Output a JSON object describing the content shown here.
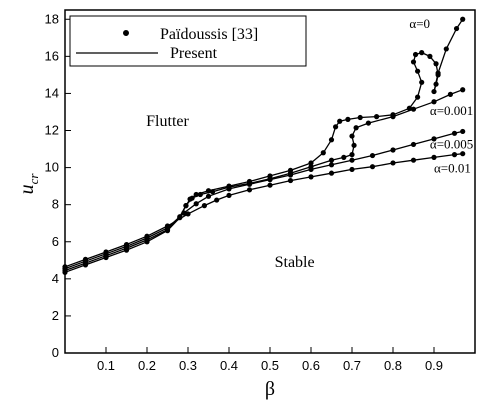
{
  "chart_data": {
    "type": "line",
    "title": "",
    "xlabel": "β",
    "ylabel_main": "u",
    "ylabel_sub": "cr",
    "xlim": [
      0,
      1
    ],
    "ylim": [
      0,
      18.5
    ],
    "xticks": [
      0.1,
      0.2,
      0.3,
      0.4,
      0.5,
      0.6,
      0.7,
      0.8,
      0.9
    ],
    "xtick_labels": [
      "0.1",
      "0.2",
      "0.3",
      "0.4",
      "0.5",
      "0.6",
      "0.7",
      "0.8",
      "0.9"
    ],
    "yticks": [
      0,
      2,
      4,
      6,
      8,
      10,
      12,
      14,
      16,
      18
    ],
    "ytick_labels": [
      "0",
      "2",
      "4",
      "6",
      "8",
      "10",
      "12",
      "14",
      "16",
      "18"
    ],
    "grid": false,
    "legend_position": "top-left",
    "legend": [
      {
        "label": "Païdoussis [33]",
        "style": "markers"
      },
      {
        "label": "Present",
        "style": "line"
      }
    ],
    "regions": [
      {
        "label": "Flutter",
        "x": 0.25,
        "y": 12.5
      },
      {
        "label": "Stable",
        "x": 0.56,
        "y": 4.9
      }
    ],
    "series": [
      {
        "name": "α=0",
        "label_at": [
          0.84,
          17.75
        ],
        "x": [
          0.0,
          0.05,
          0.1,
          0.15,
          0.2,
          0.25,
          0.28,
          0.295,
          0.305,
          0.32,
          0.35,
          0.4,
          0.45,
          0.5,
          0.55,
          0.6,
          0.63,
          0.65,
          0.66,
          0.67,
          0.69,
          0.72,
          0.76,
          0.8,
          0.84,
          0.86,
          0.87,
          0.86,
          0.85,
          0.855,
          0.87,
          0.89,
          0.905,
          0.91,
          0.905,
          0.9,
          0.91,
          0.93,
          0.955,
          0.97
        ],
        "y": [
          4.35,
          4.75,
          5.15,
          5.55,
          6.0,
          6.6,
          7.3,
          7.95,
          8.3,
          8.55,
          8.75,
          9.0,
          9.25,
          9.55,
          9.85,
          10.25,
          10.8,
          11.5,
          12.2,
          12.5,
          12.6,
          12.7,
          12.75,
          12.85,
          13.2,
          13.8,
          14.6,
          15.2,
          15.7,
          16.1,
          16.2,
          16.0,
          15.6,
          15.0,
          14.5,
          14.1,
          15.1,
          16.4,
          17.5,
          18.0
        ]
      },
      {
        "name": "α=0.001",
        "label_at": [
          0.89,
          13.05
        ],
        "x": [
          0.0,
          0.05,
          0.1,
          0.15,
          0.2,
          0.25,
          0.28,
          0.295,
          0.31,
          0.33,
          0.36,
          0.4,
          0.45,
          0.5,
          0.55,
          0.6,
          0.65,
          0.68,
          0.7,
          0.705,
          0.7,
          0.71,
          0.74,
          0.8,
          0.85,
          0.9,
          0.94,
          0.97
        ],
        "y": [
          4.45,
          4.85,
          5.25,
          5.65,
          6.1,
          6.65,
          7.35,
          7.95,
          8.35,
          8.55,
          8.7,
          8.95,
          9.15,
          9.4,
          9.7,
          10.05,
          10.4,
          10.55,
          10.7,
          11.2,
          11.7,
          12.15,
          12.4,
          12.75,
          13.15,
          13.55,
          13.95,
          14.2
        ]
      },
      {
        "name": "α=0.005",
        "label_at": [
          0.89,
          11.25
        ],
        "x": [
          0.0,
          0.05,
          0.1,
          0.15,
          0.2,
          0.25,
          0.29,
          0.32,
          0.35,
          0.4,
          0.45,
          0.5,
          0.55,
          0.6,
          0.65,
          0.7,
          0.75,
          0.8,
          0.85,
          0.9,
          0.95,
          0.97
        ],
        "y": [
          4.55,
          4.95,
          5.35,
          5.75,
          6.2,
          6.75,
          7.55,
          8.05,
          8.45,
          8.85,
          9.1,
          9.35,
          9.6,
          9.9,
          10.15,
          10.4,
          10.65,
          10.95,
          11.25,
          11.55,
          11.85,
          11.95
        ]
      },
      {
        "name": "α=0.01",
        "label_at": [
          0.9,
          9.95
        ],
        "x": [
          0.0,
          0.05,
          0.1,
          0.15,
          0.2,
          0.25,
          0.3,
          0.34,
          0.37,
          0.4,
          0.45,
          0.5,
          0.55,
          0.6,
          0.65,
          0.7,
          0.75,
          0.8,
          0.85,
          0.9,
          0.95,
          0.97
        ],
        "y": [
          4.65,
          5.05,
          5.45,
          5.85,
          6.3,
          6.85,
          7.5,
          7.95,
          8.25,
          8.5,
          8.8,
          9.05,
          9.3,
          9.5,
          9.7,
          9.9,
          10.05,
          10.25,
          10.4,
          10.55,
          10.7,
          10.75
        ]
      }
    ]
  }
}
